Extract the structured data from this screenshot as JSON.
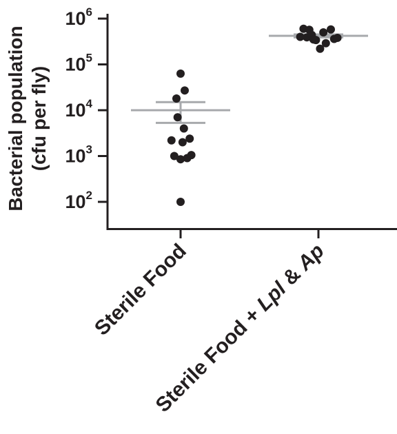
{
  "chart_data": {
    "type": "scatter",
    "ylabel_line1": "Bacterial population",
    "ylabel_line2": "(cfu per fly)",
    "yscale": "log",
    "ylim": [
      30,
      1000000
    ],
    "yticks": [
      {
        "base": "10",
        "exp": "2",
        "value": 100
      },
      {
        "base": "10",
        "exp": "3",
        "value": 1000
      },
      {
        "base": "10",
        "exp": "4",
        "value": 10000
      },
      {
        "base": "10",
        "exp": "5",
        "value": 100000
      },
      {
        "base": "10",
        "exp": "6",
        "value": 1000000
      }
    ],
    "categories": [
      {
        "parts": [
          {
            "text": "Sterile Food",
            "italic": false
          }
        ]
      },
      {
        "parts": [
          {
            "text": "Sterile Food + ",
            "italic": false
          },
          {
            "text": "Lpl",
            "italic": true
          },
          {
            "text": " & ",
            "italic": false
          },
          {
            "text": "Ap",
            "italic": true
          }
        ]
      }
    ],
    "series": [
      {
        "values": [
          63000,
          27000,
          18000,
          7000,
          4000,
          2200,
          2400,
          2000,
          1000,
          900,
          1050,
          850,
          100
        ],
        "jitter": [
          0,
          0.25,
          -0.25,
          -0.18,
          0.2,
          -0.55,
          0.55,
          0.12,
          -0.38,
          0.4,
          0.65,
          0,
          0
        ],
        "mean": 10000,
        "sem_upper": 15000,
        "sem_lower": 5300
      },
      {
        "values": [
          600000,
          570000,
          580000,
          400000,
          390000,
          360000,
          340000,
          290000,
          220000,
          500000,
          440000,
          380000,
          350000
        ],
        "jitter": [
          -0.9,
          -0.55,
          0.75,
          -1.1,
          -0.7,
          0.95,
          -0.15,
          0.45,
          0.1,
          0.3,
          -0.4,
          1.15,
          -0.3
        ],
        "mean": 420000,
        "sem_upper": 450000,
        "sem_lower": 390000
      }
    ],
    "colors": {
      "points": "#231f20",
      "stat_lines": "#a7a9ac",
      "axis": "#231f20"
    }
  }
}
